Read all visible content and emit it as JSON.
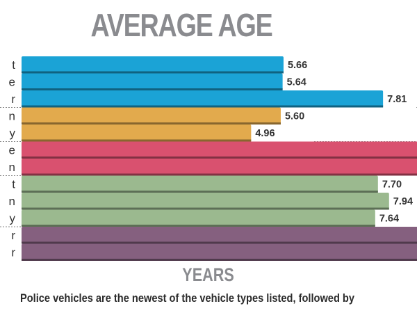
{
  "chart_data": {
    "type": "bar",
    "orientation": "horizontal",
    "title": "AVERAGE AGE",
    "xlabel": "YEARS",
    "ylabel": "",
    "caption": "Police vehicles are the newest of the vehicle types listed, followed by",
    "xlim": [
      0,
      8.55
    ],
    "grid": false,
    "categories_visible_suffix": [
      "t",
      "e",
      "r",
      "n",
      "y",
      "e",
      "n",
      "t",
      "n",
      "y",
      "r",
      "r"
    ],
    "groups": [
      {
        "name": "group-1",
        "color": "#1ba3d6",
        "rows": [
          0,
          1,
          2
        ]
      },
      {
        "name": "group-2",
        "color": "#e2aa4d",
        "rows": [
          3,
          4
        ]
      },
      {
        "name": "group-3",
        "color": "#d9516f",
        "rows": [
          5,
          6
        ]
      },
      {
        "name": "group-4",
        "color": "#9bb98f",
        "rows": [
          7,
          8,
          9
        ]
      },
      {
        "name": "group-5",
        "color": "#85607f",
        "rows": [
          10,
          11
        ]
      }
    ],
    "values": [
      5.66,
      5.64,
      7.81,
      5.6,
      4.96,
      null,
      null,
      7.7,
      7.94,
      7.64,
      null,
      null
    ],
    "value_labels": [
      "5.66",
      "5.64",
      "7.81",
      "5.60",
      "4.96",
      "",
      "",
      "7.70",
      "7.94",
      "7.64",
      "",
      ""
    ]
  }
}
